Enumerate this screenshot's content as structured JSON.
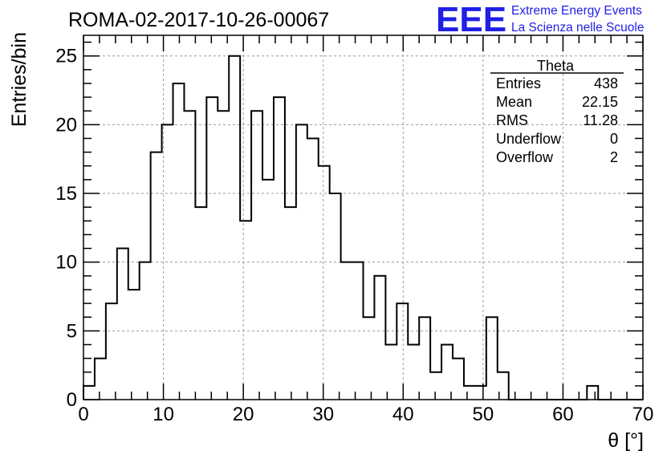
{
  "title": "ROMA-02-2017-10-26-00067",
  "logo": {
    "mark": "EEE",
    "line1": "Extreme Energy Events",
    "line2": "La Scienza nelle Scuole",
    "color": "#1f1fe6"
  },
  "stats": {
    "title": "Theta",
    "rows": [
      {
        "label": "Entries",
        "value": "438"
      },
      {
        "label": "Mean",
        "value": "22.15"
      },
      {
        "label": "RMS",
        "value": "11.28"
      },
      {
        "label": "Underflow",
        "value": "0"
      },
      {
        "label": "Overflow",
        "value": "2"
      }
    ]
  },
  "chart_data": {
    "type": "histogram",
    "xlabel": "θ [°]",
    "ylabel": "Entries/bin",
    "xlim": [
      0,
      70
    ],
    "ylim": [
      0,
      26.5
    ],
    "xticks": [
      0,
      10,
      20,
      30,
      40,
      50,
      60,
      70
    ],
    "yticks": [
      0,
      5,
      10,
      15,
      20,
      25
    ],
    "grid": true,
    "bin_width": 1.4,
    "bin_edges_start": 0,
    "values": [
      1,
      3,
      7,
      11,
      8,
      10,
      18,
      20,
      23,
      21,
      14,
      22,
      21,
      25,
      13,
      21,
      16,
      22,
      14,
      20,
      19,
      17,
      15,
      10,
      10,
      6,
      9,
      4,
      7,
      4,
      6,
      2,
      4,
      3,
      1,
      1,
      6,
      2,
      0,
      0,
      0,
      0,
      0,
      0,
      0,
      1,
      0,
      0,
      0,
      0
    ],
    "line_color": "#000000"
  }
}
